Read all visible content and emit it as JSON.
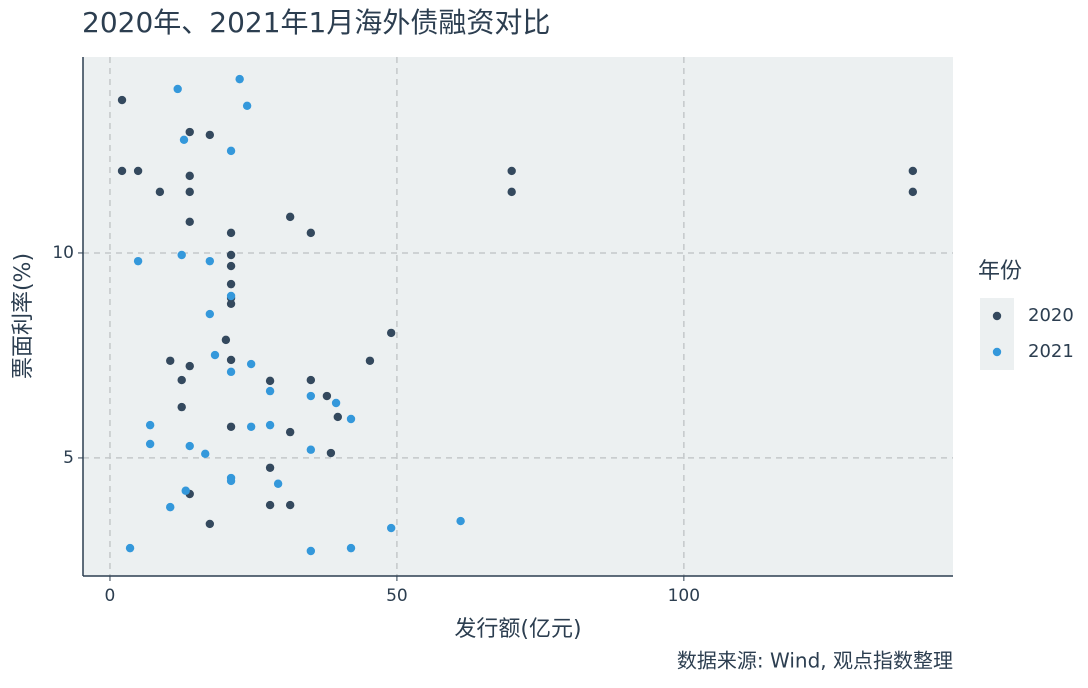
{
  "chart_data": {
    "type": "scatter",
    "title": "2020年、2021年1月海外债融资对比",
    "x_label": "发行额(亿元)",
    "y_label": "票面利率(%)",
    "caption": "数据来源: Wind, 观点指数整理",
    "legend_title": "年份",
    "legend_position": "right",
    "grid": true,
    "background": "#ecf0f1",
    "xlim": [
      -4.7,
      146.9
    ],
    "ylim": [
      2.12,
      14.78
    ],
    "xticks": [
      0,
      50,
      100
    ],
    "yticks": [
      5,
      10
    ],
    "series": [
      {
        "name": "2020",
        "color": "#34495e",
        "x": [
          2.1,
          2.1,
          4.9,
          8.7,
          13.9,
          17.4,
          13.9,
          13.9,
          13.9,
          21.1,
          31.4,
          35.0,
          21.1,
          21.1,
          21.1,
          21.1,
          21.1,
          70.0,
          70.0,
          139.9,
          139.9,
          49.0,
          20.2,
          10.5,
          13.9,
          21.1,
          45.3,
          12.5,
          27.9,
          35.0,
          37.8,
          39.7,
          12.5,
          21.1,
          31.4,
          38.5,
          27.9,
          13.9,
          27.9,
          31.4,
          17.4
        ],
        "values": [
          13.73,
          12.0,
          12.0,
          11.49,
          12.95,
          12.88,
          11.88,
          11.49,
          10.76,
          10.49,
          10.88,
          10.49,
          9.95,
          9.68,
          9.24,
          8.9,
          8.76,
          12.0,
          11.49,
          12.0,
          11.49,
          8.05,
          7.88,
          7.37,
          7.24,
          7.39,
          7.37,
          6.9,
          6.88,
          6.9,
          6.51,
          6.0,
          6.24,
          5.76,
          5.63,
          5.12,
          4.76,
          4.12,
          3.85,
          3.85,
          3.39
        ]
      },
      {
        "name": "2021",
        "color": "#3498db",
        "x": [
          22.6,
          11.8,
          23.9,
          12.9,
          21.1,
          4.9,
          12.5,
          17.4,
          21.1,
          17.4,
          18.3,
          24.6,
          21.1,
          27.9,
          35.0,
          39.4,
          42.0,
          7.0,
          7.0,
          24.6,
          27.9,
          13.9,
          16.6,
          35.0,
          21.1,
          21.1,
          29.3,
          13.2,
          10.5,
          49.0,
          61.1,
          3.5,
          35.0,
          42.0
        ],
        "values": [
          14.24,
          14.0,
          13.59,
          12.76,
          12.49,
          9.8,
          9.95,
          9.8,
          8.95,
          8.51,
          7.51,
          7.29,
          7.1,
          6.63,
          6.51,
          6.34,
          5.95,
          5.8,
          5.34,
          5.76,
          5.8,
          5.29,
          5.1,
          5.2,
          4.51,
          4.44,
          4.37,
          4.2,
          3.8,
          3.29,
          3.46,
          2.8,
          2.73,
          2.8
        ]
      }
    ]
  }
}
